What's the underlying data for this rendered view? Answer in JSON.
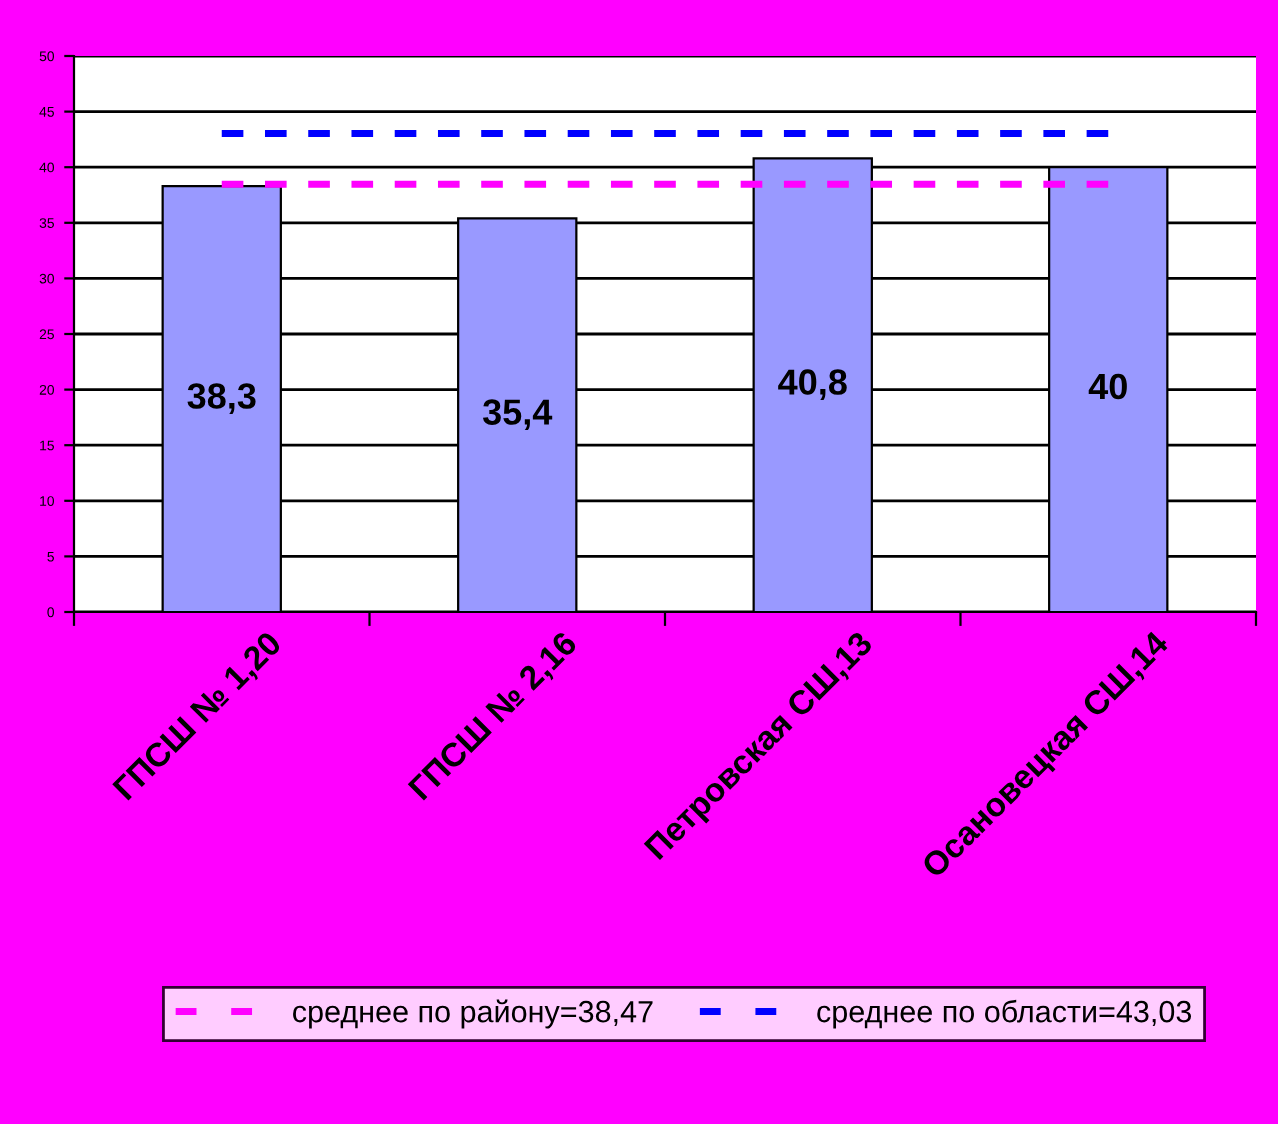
{
  "chart_data": {
    "type": "bar",
    "categories": [
      "ГПСШ № 1,20",
      "ГПСШ № 2,16",
      "Петровская СШ,13",
      "Осановецкая СШ,14"
    ],
    "series": [
      {
        "color": "#9999ff",
        "values": [
          38.3,
          35.4,
          40.8,
          40
        ],
        "value_labels": [
          "38,3",
          "35,4",
          "40,8",
          "40"
        ]
      },
      {
        "type": "line",
        "name": "среднее по району=38,47",
        "color": "#ff00ff",
        "values": [
          38.47,
          38.47,
          38.47,
          38.47
        ],
        "line_style": "dashed"
      },
      {
        "type": "line",
        "name": "среднее по области=43,03",
        "color": "#0000ff",
        "values": [
          43.03,
          43.03,
          43.03,
          43.03
        ],
        "line_style": "dashed"
      }
    ],
    "ylim": [
      0,
      50
    ],
    "yticks": [
      0,
      5,
      10,
      15,
      20,
      25,
      30,
      35,
      40,
      45,
      50
    ],
    "grid": "y",
    "legend": "bottom",
    "marker": "none"
  }
}
